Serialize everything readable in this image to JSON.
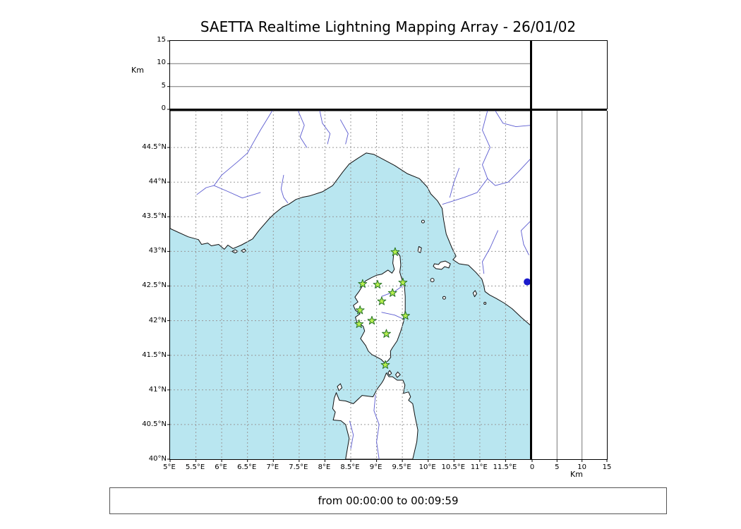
{
  "title": "SAETTA Realtime Lightning Mapping Array - 26/01/02",
  "status_text": "from 00:00:00 to 00:09:59",
  "colors": {
    "sea": "#b9e6f0",
    "land": "#ffffff",
    "coast": "#111111",
    "river": "#5b5bd0",
    "grid": "#999999",
    "panel_line": "#777777",
    "station_fill": "#b6ef4f",
    "station_stroke": "#267326",
    "lake": "#1a1acc"
  },
  "map": {
    "lon_min": 5,
    "lon_max": 12,
    "lat_min": 40,
    "lat_max": 45.03,
    "lon_ticks": [
      {
        "v": 5,
        "label": "5°E"
      },
      {
        "v": 5.5,
        "label": "5.5°E"
      },
      {
        "v": 6,
        "label": "6°E"
      },
      {
        "v": 6.5,
        "label": "6.5°E"
      },
      {
        "v": 7,
        "label": "7°E"
      },
      {
        "v": 7.5,
        "label": "7.5°E"
      },
      {
        "v": 8,
        "label": "8°E"
      },
      {
        "v": 8.5,
        "label": "8.5°E"
      },
      {
        "v": 9,
        "label": "9°E"
      },
      {
        "v": 9.5,
        "label": "9.5°E"
      },
      {
        "v": 10,
        "label": "10°E"
      },
      {
        "v": 10.5,
        "label": "10.5°E"
      },
      {
        "v": 11,
        "label": "11°E"
      },
      {
        "v": 11.5,
        "label": "11.5°E"
      }
    ],
    "lat_ticks": [
      {
        "v": 40,
        "label": "40°N"
      },
      {
        "v": 40.5,
        "label": "40.5°N"
      },
      {
        "v": 41,
        "label": "41°N"
      },
      {
        "v": 41.5,
        "label": "41.5°N"
      },
      {
        "v": 42,
        "label": "42°N"
      },
      {
        "v": 42.5,
        "label": "42.5°N"
      },
      {
        "v": 43,
        "label": "43°N"
      },
      {
        "v": 43.5,
        "label": "43.5°N"
      },
      {
        "v": 44,
        "label": "44°N"
      },
      {
        "v": 44.5,
        "label": "44.5°N"
      }
    ]
  },
  "alt_axis": {
    "label": "Km",
    "max": 15,
    "ticks": [
      {
        "v": 0,
        "label": "0"
      },
      {
        "v": 5,
        "label": "5"
      },
      {
        "v": 10,
        "label": "10"
      },
      {
        "v": 15,
        "label": "15"
      }
    ],
    "gridlines": [
      5,
      10
    ]
  },
  "stations": [
    {
      "lon": 9.36,
      "lat": 42.99
    },
    {
      "lon": 8.73,
      "lat": 42.53
    },
    {
      "lon": 9.02,
      "lat": 42.52
    },
    {
      "lon": 9.51,
      "lat": 42.55
    },
    {
      "lon": 9.31,
      "lat": 42.4
    },
    {
      "lon": 9.1,
      "lat": 42.28
    },
    {
      "lon": 8.68,
      "lat": 42.15
    },
    {
      "lon": 9.56,
      "lat": 42.07
    },
    {
      "lon": 8.91,
      "lat": 42.0
    },
    {
      "lon": 8.66,
      "lat": 41.95
    },
    {
      "lon": 9.19,
      "lat": 41.81
    },
    {
      "lon": 9.17,
      "lat": 41.36
    }
  ],
  "lake_marker": {
    "lon": 11.92,
    "lat": 42.56
  }
}
